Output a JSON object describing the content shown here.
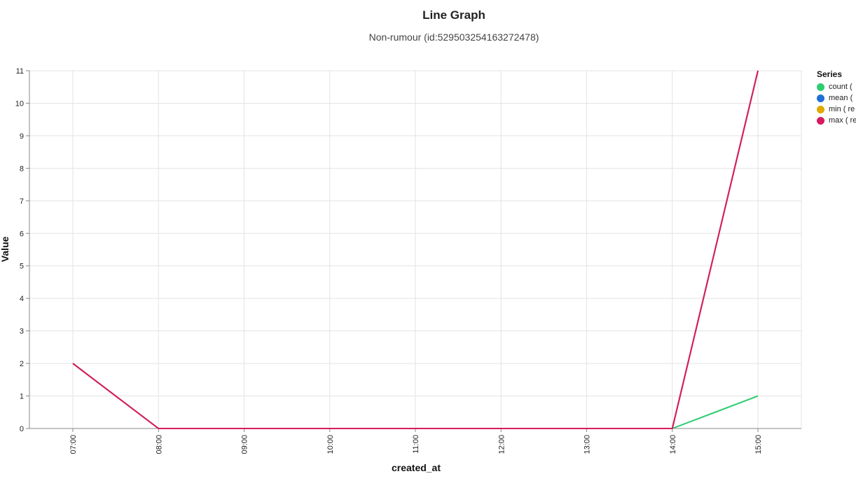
{
  "chart_data": {
    "type": "line",
    "title": "Line Graph",
    "subtitle": "Non-rumour (id:529503254163272478)",
    "xlabel": "created_at",
    "ylabel": "Value",
    "x": [
      "07:00",
      "08:00",
      "09:00",
      "10:00",
      "11:00",
      "12:00",
      "13:00",
      "14:00",
      "15:00"
    ],
    "ylim": [
      0,
      11
    ],
    "yticks": [
      0,
      1,
      2,
      3,
      4,
      5,
      6,
      7,
      8,
      9,
      10,
      11
    ],
    "grid": true,
    "legend": {
      "title": "Series",
      "position": "right"
    },
    "series": [
      {
        "name": "count (",
        "color": "#2ecc71",
        "values": [
          2,
          0,
          0,
          0,
          0,
          0,
          0,
          0,
          1
        ]
      },
      {
        "name": "mean (",
        "color": "#1f6fd6",
        "values": [
          2,
          0,
          0,
          0,
          0,
          0,
          0,
          0,
          11
        ]
      },
      {
        "name": "min ( re",
        "color": "#e0a800",
        "values": [
          2,
          0,
          0,
          0,
          0,
          0,
          0,
          0,
          11
        ]
      },
      {
        "name": "max ( re",
        "color": "#d81b60",
        "values": [
          2,
          0,
          0,
          0,
          0,
          0,
          0,
          0,
          11
        ]
      }
    ]
  }
}
